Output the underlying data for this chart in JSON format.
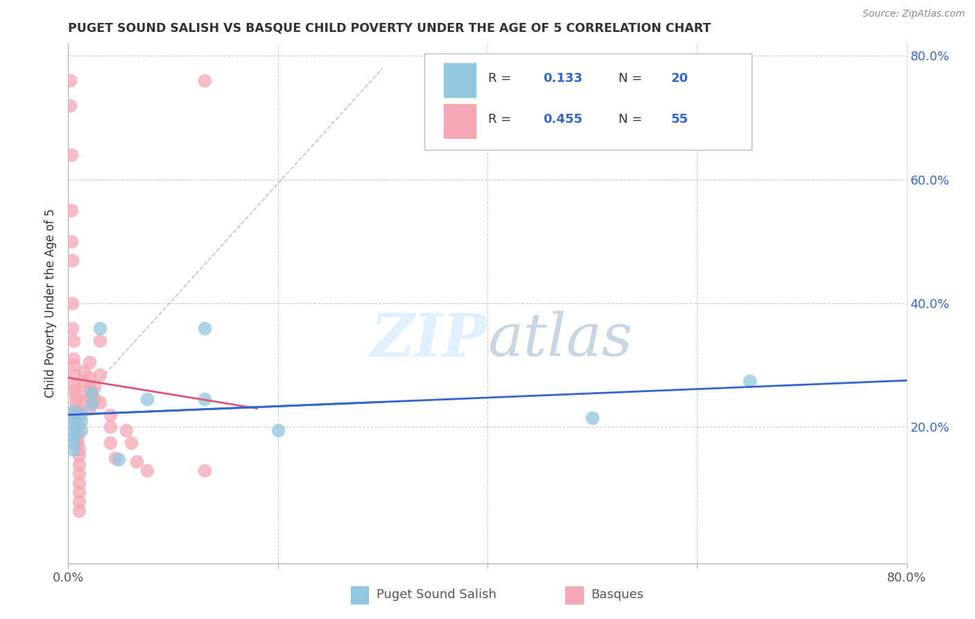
{
  "title": "PUGET SOUND SALISH VS BASQUE CHILD POVERTY UNDER THE AGE OF 5 CORRELATION CHART",
  "source": "Source: ZipAtlas.com",
  "ylabel": "Child Poverty Under the Age of 5",
  "xlim": [
    0,
    0.8
  ],
  "ylim": [
    -0.02,
    0.82
  ],
  "blue_color": "#92C5DE",
  "pink_color": "#F4A7B5",
  "blue_line_color": "#3366CC",
  "pink_line_color": "#E05575",
  "watermark_zip": "ZIP",
  "watermark_atlas": "atlas",
  "blue_scatter": [
    [
      0.005,
      0.225
    ],
    [
      0.005,
      0.215
    ],
    [
      0.005,
      0.205
    ],
    [
      0.005,
      0.195
    ],
    [
      0.005,
      0.185
    ],
    [
      0.005,
      0.175
    ],
    [
      0.005,
      0.163
    ],
    [
      0.012,
      0.222
    ],
    [
      0.012,
      0.21
    ],
    [
      0.012,
      0.195
    ],
    [
      0.022,
      0.256
    ],
    [
      0.022,
      0.238
    ],
    [
      0.03,
      0.36
    ],
    [
      0.048,
      0.148
    ],
    [
      0.075,
      0.245
    ],
    [
      0.13,
      0.36
    ],
    [
      0.13,
      0.245
    ],
    [
      0.2,
      0.195
    ],
    [
      0.5,
      0.215
    ],
    [
      0.65,
      0.275
    ]
  ],
  "pink_scatter": [
    [
      0.002,
      0.76
    ],
    [
      0.002,
      0.72
    ],
    [
      0.003,
      0.64
    ],
    [
      0.003,
      0.55
    ],
    [
      0.003,
      0.5
    ],
    [
      0.004,
      0.47
    ],
    [
      0.004,
      0.4
    ],
    [
      0.004,
      0.36
    ],
    [
      0.005,
      0.34
    ],
    [
      0.005,
      0.31
    ],
    [
      0.005,
      0.3
    ],
    [
      0.006,
      0.285
    ],
    [
      0.006,
      0.27
    ],
    [
      0.006,
      0.26
    ],
    [
      0.007,
      0.25
    ],
    [
      0.007,
      0.24
    ],
    [
      0.007,
      0.23
    ],
    [
      0.008,
      0.225
    ],
    [
      0.008,
      0.215
    ],
    [
      0.008,
      0.205
    ],
    [
      0.009,
      0.195
    ],
    [
      0.009,
      0.185
    ],
    [
      0.009,
      0.175
    ],
    [
      0.01,
      0.165
    ],
    [
      0.01,
      0.155
    ],
    [
      0.01,
      0.14
    ],
    [
      0.01,
      0.125
    ],
    [
      0.01,
      0.11
    ],
    [
      0.01,
      0.095
    ],
    [
      0.01,
      0.08
    ],
    [
      0.01,
      0.065
    ],
    [
      0.015,
      0.29
    ],
    [
      0.015,
      0.275
    ],
    [
      0.015,
      0.255
    ],
    [
      0.015,
      0.24
    ],
    [
      0.02,
      0.305
    ],
    [
      0.02,
      0.28
    ],
    [
      0.02,
      0.265
    ],
    [
      0.02,
      0.248
    ],
    [
      0.02,
      0.23
    ],
    [
      0.025,
      0.265
    ],
    [
      0.025,
      0.245
    ],
    [
      0.03,
      0.34
    ],
    [
      0.03,
      0.285
    ],
    [
      0.03,
      0.24
    ],
    [
      0.04,
      0.22
    ],
    [
      0.04,
      0.2
    ],
    [
      0.04,
      0.175
    ],
    [
      0.045,
      0.15
    ],
    [
      0.055,
      0.195
    ],
    [
      0.06,
      0.175
    ],
    [
      0.065,
      0.145
    ],
    [
      0.075,
      0.13
    ],
    [
      0.13,
      0.13
    ],
    [
      0.13,
      0.76
    ]
  ],
  "pink_line_xmax": 0.18,
  "legend_R1": "0.133",
  "legend_N1": "20",
  "legend_R2": "0.455",
  "legend_N2": "55"
}
